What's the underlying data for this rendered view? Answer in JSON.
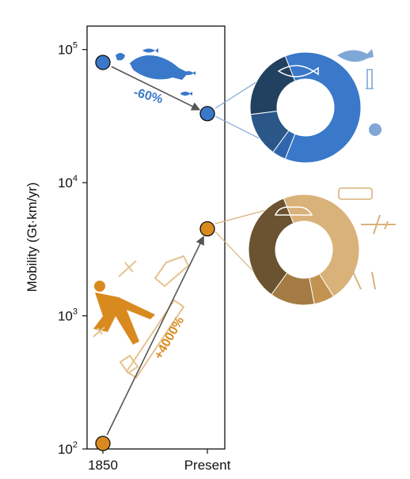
{
  "chart_data": {
    "type": "scatter",
    "ylabel": "Mobility (Gt·km/yr)",
    "yscale": "log",
    "ylim": [
      100,
      150000
    ],
    "yticks": [
      {
        "base": "10",
        "exp": "2",
        "value": 100
      },
      {
        "base": "10",
        "exp": "3",
        "value": 1000
      },
      {
        "base": "10",
        "exp": "4",
        "value": 10000
      },
      {
        "base": "10",
        "exp": "5",
        "value": 100000
      }
    ],
    "categories": [
      "1850",
      "Present"
    ],
    "series": [
      {
        "key": "wild",
        "values": [
          80000,
          33000
        ],
        "color": "#3A78C9",
        "change": "-60%"
      },
      {
        "key": "human",
        "values": [
          110,
          4500
        ],
        "color": "#D98A1F",
        "change": "+4000%"
      }
    ],
    "donuts": [
      {
        "key": "wild",
        "fractions": [
          0.62,
          0.04,
          0.13,
          0.21
        ],
        "colors": [
          "#3A78C9",
          "#2F66AD",
          "#2A5788",
          "#22405F"
        ]
      },
      {
        "key": "human",
        "fractions": [
          0.47,
          0.06,
          0.13,
          0.34
        ],
        "colors": [
          "#D9B27A",
          "#C29350",
          "#A47B43",
          "#6B5230"
        ]
      }
    ]
  },
  "icons": {
    "wild": [
      "fish-icon",
      "whale-icon",
      "krill-icon",
      "anglerfish-icon"
    ],
    "human": [
      "train-icon",
      "car-icon",
      "airplane-icon",
      "legs-icon",
      "walking-person-icon"
    ]
  }
}
